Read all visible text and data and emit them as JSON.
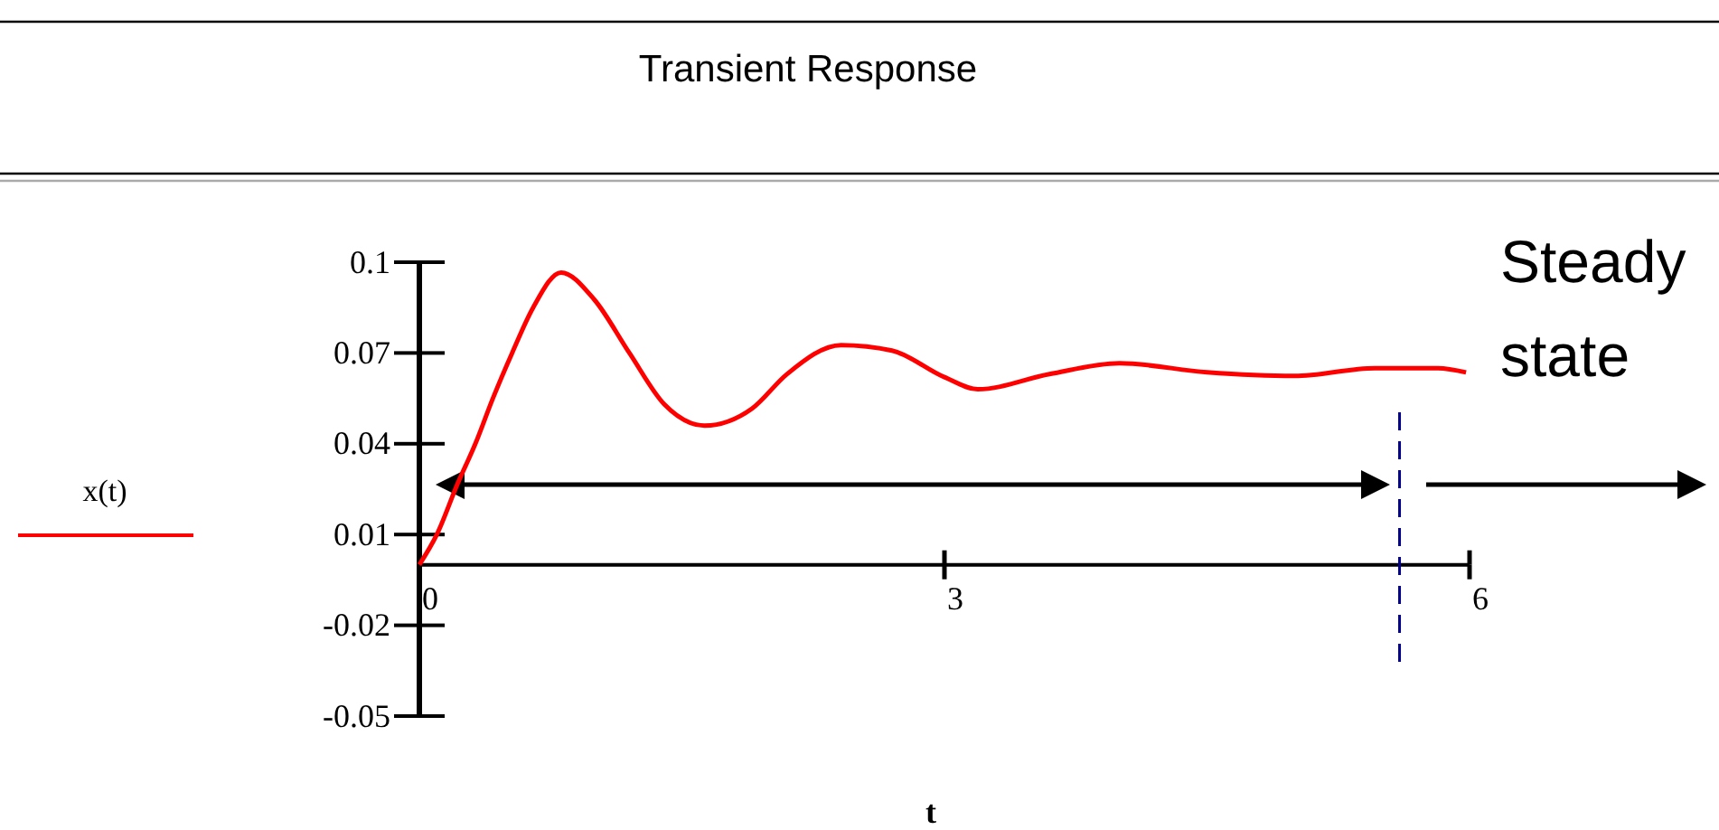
{
  "chart_data": {
    "type": "line",
    "title": "Transient Response",
    "xlabel": "t",
    "x": [
      0,
      0.1,
      0.22,
      0.32,
      0.42,
      0.53,
      0.65,
      0.81,
      1.0,
      1.2,
      1.4,
      1.63,
      1.9,
      2.1,
      2.41,
      2.7,
      3.0,
      3.19,
      3.6,
      4.0,
      4.5,
      5.0,
      5.46,
      5.82,
      5.98
    ],
    "series": [
      {
        "name": "x(t)",
        "color": "#ff0000",
        "values": [
          0,
          0.01,
          0.027,
          0.04,
          0.055,
          0.07,
          0.085,
          0.0966,
          0.0876,
          0.07,
          0.053,
          0.046,
          0.0516,
          0.063,
          0.0726,
          0.0708,
          0.062,
          0.058,
          0.063,
          0.0666,
          0.0636,
          0.0624,
          0.065,
          0.065,
          0.0636
        ]
      }
    ],
    "xlim": [
      0,
      6
    ],
    "xticks": [
      0,
      3,
      6
    ],
    "ylim": [
      -0.05,
      0.1
    ],
    "yticks": [
      0.1,
      0.07,
      0.04,
      0.01,
      -0.02,
      -0.05
    ],
    "ref_lines": [
      {
        "axis": "x",
        "value": 5.6,
        "color": "#00008b",
        "line_style": "dashed"
      }
    ],
    "annotations": [
      "Steady state"
    ],
    "legend": "left",
    "grid": false,
    "line_style": "solid"
  }
}
